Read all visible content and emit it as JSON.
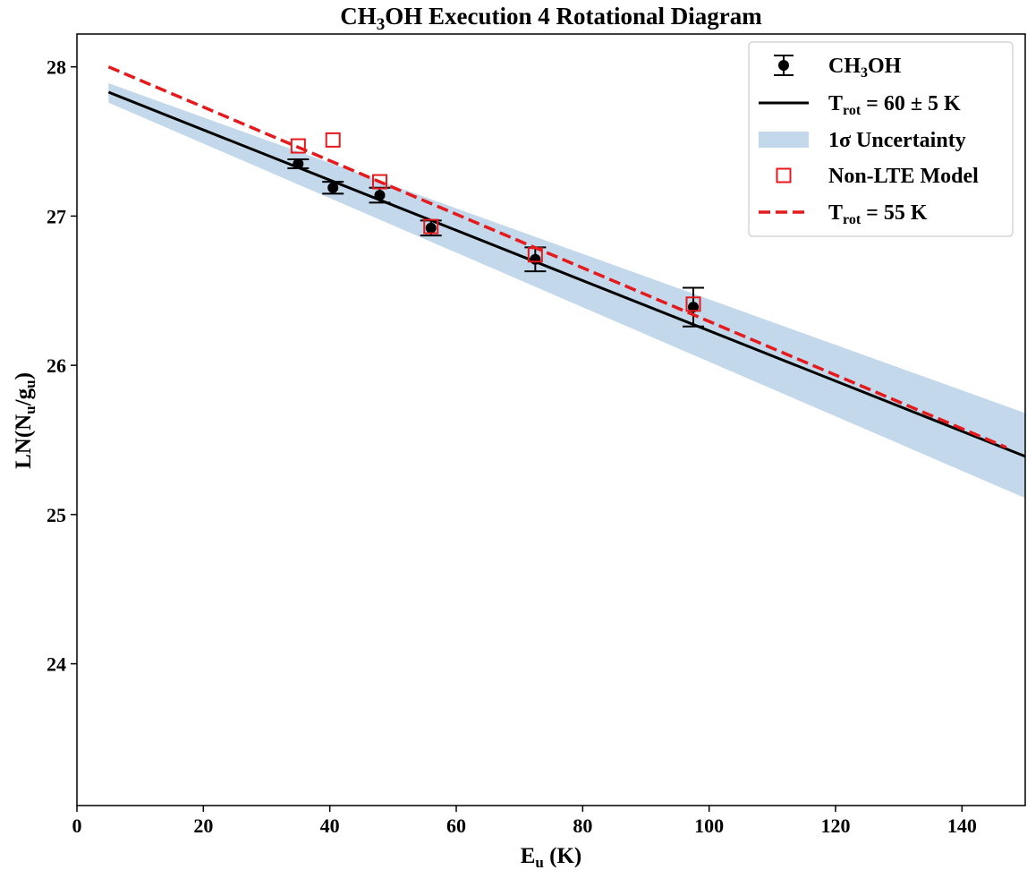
{
  "chart_data": {
    "type": "scatter",
    "title": "CH₃OH Execution 4 Rotational Diagram",
    "title_parts": [
      "CH",
      "3",
      "OH Execution 4 Rotational Diagram"
    ],
    "xlabel": "Eᵤ (K)",
    "xlabel_parts": [
      "E",
      "u",
      " (K)"
    ],
    "ylabel": "LN(Nᵤ/gᵤ)",
    "ylabel_parts": [
      "LN(N",
      "u",
      "/g",
      "u",
      ")"
    ],
    "xlim": [
      0,
      150
    ],
    "ylim": [
      23.05,
      28.22
    ],
    "xticks": [
      0,
      20,
      40,
      60,
      80,
      100,
      120,
      140
    ],
    "yticks": [
      24,
      25,
      26,
      27,
      28
    ],
    "grid": false,
    "legend_position": "top-right",
    "series": [
      {
        "name": "CH₃OH",
        "kind": "errorbar-points",
        "color": "#000000",
        "x": [
          35.0,
          40.5,
          47.9,
          56.0,
          72.5,
          97.5
        ],
        "y": [
          27.35,
          27.19,
          27.14,
          26.92,
          26.71,
          26.39
        ],
        "yerr": [
          0.03,
          0.04,
          0.05,
          0.05,
          0.08,
          0.13
        ]
      },
      {
        "name": "T_rot = 60 ± 5 K",
        "kind": "line",
        "color": "#000000",
        "x": [
          5,
          150
        ],
        "y": [
          27.83,
          25.39
        ]
      },
      {
        "name": "1σ Uncertainty",
        "kind": "band",
        "color": "#c3d8ea",
        "x": [
          5,
          150
        ],
        "lower": [
          27.76,
          25.11
        ],
        "upper": [
          27.89,
          25.68
        ]
      },
      {
        "name": "Non-LTE Model",
        "kind": "open-square-points",
        "color": "#e41a1c",
        "x": [
          35.0,
          40.5,
          47.9,
          56.0,
          72.5,
          97.5
        ],
        "y": [
          27.47,
          27.51,
          27.23,
          26.93,
          26.74,
          26.41
        ]
      },
      {
        "name": "T_rot = 55 K",
        "kind": "dashed-line",
        "color": "#e41a1c",
        "x": [
          5,
          147
        ],
        "y": [
          28.0,
          25.45
        ]
      }
    ],
    "legend": [
      {
        "main": "CH",
        "sub": "3",
        "rest": "OH"
      },
      {
        "main": "T",
        "sub": "rot",
        "rest": " = 60 ± 5 K"
      },
      {
        "main": "1σ Uncertainty",
        "sub": "",
        "rest": ""
      },
      {
        "main": "Non-LTE Model",
        "sub": "",
        "rest": ""
      },
      {
        "main": "T",
        "sub": "rot",
        "rest": " = 55 K"
      }
    ]
  }
}
